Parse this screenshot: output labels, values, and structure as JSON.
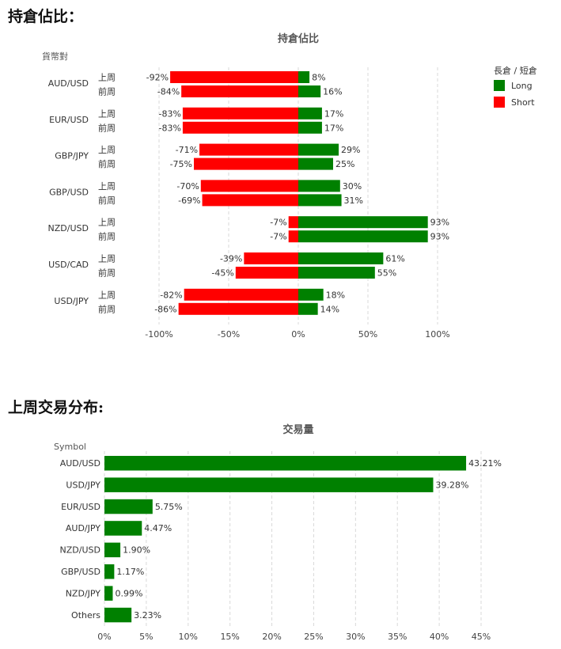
{
  "headings": {
    "position_ratio": "持倉佔比：",
    "trade_distribution": "上周交易分布:"
  },
  "chart_data": [
    {
      "type": "bar",
      "orientation": "horizontal",
      "stacked": "diverging",
      "title": "持倉佔比",
      "ylabel": "貨幣對",
      "categories": [
        "AUD/USD",
        "EUR/USD",
        "GBP/JPY",
        "GBP/USD",
        "NZD/USD",
        "USD/CAD",
        "USD/JPY"
      ],
      "sub_categories": [
        "上周",
        "前周"
      ],
      "xlim": [
        -100,
        100
      ],
      "xticks": [
        -100,
        -50,
        0,
        50,
        100
      ],
      "xtick_labels": [
        "-100%",
        "-50%",
        "0%",
        "50%",
        "100%"
      ],
      "legend": {
        "title": "長倉 / 短倉",
        "position": "top-right",
        "entries": [
          {
            "label": "Long",
            "color": "#008000"
          },
          {
            "label": "Short",
            "color": "#ff0000"
          }
        ]
      },
      "series": [
        {
          "name": "Long",
          "color": "#008000",
          "values": [
            [
              8,
              16
            ],
            [
              17,
              17
            ],
            [
              29,
              25
            ],
            [
              30,
              31
            ],
            [
              93,
              93
            ],
            [
              61,
              55
            ],
            [
              18,
              14
            ]
          ]
        },
        {
          "name": "Short",
          "color": "#ff0000",
          "values": [
            [
              -92,
              -84
            ],
            [
              -83,
              -83
            ],
            [
              -71,
              -75
            ],
            [
              -70,
              -69
            ],
            [
              -7,
              -7
            ],
            [
              -39,
              -45
            ],
            [
              -82,
              -86
            ]
          ]
        }
      ],
      "grid": "vertical-dashed"
    },
    {
      "type": "bar",
      "orientation": "horizontal",
      "title": "交易量",
      "ylabel": "Symbol",
      "categories": [
        "AUD/USD",
        "USD/JPY",
        "EUR/USD",
        "AUD/JPY",
        "NZD/USD",
        "GBP/USD",
        "NZD/JPY",
        "Others"
      ],
      "values": [
        43.21,
        39.28,
        5.75,
        4.47,
        1.9,
        1.17,
        0.99,
        3.23
      ],
      "value_labels": [
        "43.21%",
        "39.28%",
        "5.75%",
        "4.47%",
        "1.90%",
        "1.17%",
        "0.99%",
        "3.23%"
      ],
      "color": "#008000",
      "xlim": [
        0,
        45
      ],
      "xticks": [
        0,
        5,
        10,
        15,
        20,
        25,
        30,
        35,
        40,
        45
      ],
      "xtick_labels": [
        "0%",
        "5%",
        "10%",
        "15%",
        "20%",
        "25%",
        "30%",
        "35%",
        "40%",
        "45%"
      ],
      "grid": "vertical-dashed"
    }
  ]
}
